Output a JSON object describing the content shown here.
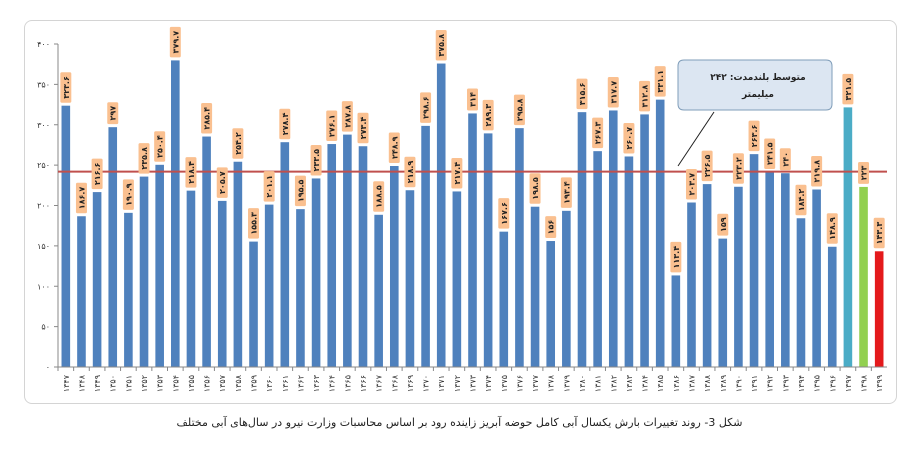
{
  "caption": "شکل 3- روند تغییرات بارش یکسال آبی کامل حوضه آبریز زاینده رود بر اساس محاسبات وزارت نیرو در سال‌های آبی مختلف",
  "colors": {
    "bar": "#4f81bd",
    "bar_1397": "#4bacc6",
    "bar_1398": "#92d050",
    "bar_1399": "#e41a1c",
    "mean_line": "#c0504d",
    "label_bg": "#fac090",
    "callout_bg": "#dce6f2",
    "callout_border": "#7f9db9"
  },
  "chart_data": {
    "type": "bar",
    "title": "",
    "xlabel": "",
    "ylabel": "",
    "ylim": [
      0,
      400
    ],
    "y_ticks": [
      "۰",
      "۵۰",
      "۱۰۰",
      "۱۵۰",
      "۲۰۰",
      "۲۵۰",
      "۳۰۰",
      "۳۵۰",
      "۴۰۰"
    ],
    "y_tick_values": [
      0,
      50,
      100,
      150,
      200,
      250,
      300,
      350,
      400
    ],
    "grid": false,
    "categories": [
      "۱۳۴۷",
      "۱۳۴۸",
      "۱۳۴۹",
      "۱۳۵۰",
      "۱۳۵۱",
      "۱۳۵۲",
      "۱۳۵۳",
      "۱۳۵۴",
      "۱۳۵۵",
      "۱۳۵۶",
      "۱۳۵۷",
      "۱۳۵۸",
      "۱۳۵۹",
      "۱۳۶۰",
      "۱۳۶۱",
      "۱۳۶۲",
      "۱۳۶۳",
      "۱۳۶۴",
      "۱۳۶۵",
      "۱۳۶۶",
      "۱۳۶۷",
      "۱۳۶۸",
      "۱۳۶۹",
      "۱۳۷۰",
      "۱۳۷۱",
      "۱۳۷۲",
      "۱۳۷۳",
      "۱۳۷۴",
      "۱۳۷۵",
      "۱۳۷۶",
      "۱۳۷۷",
      "۱۳۷۸",
      "۱۳۷۹",
      "۱۳۸۰",
      "۱۳۸۱",
      "۱۳۸۲",
      "۱۳۸۳",
      "۱۳۸۴",
      "۱۳۸۵",
      "۱۳۸۶",
      "۱۳۸۷",
      "۱۳۸۸",
      "۱۳۸۹",
      "۱۳۹۰",
      "۱۳۹۱",
      "۱۳۹۲",
      "۱۳۹۳",
      "۱۳۹۴",
      "۱۳۹۵",
      "۱۳۹۶",
      "۱۳۹۷",
      "۱۳۹۸",
      "۱۳۹۹"
    ],
    "values": [
      323.6,
      186.7,
      216.6,
      297,
      190.9,
      235.8,
      250.4,
      379.7,
      218.4,
      285.4,
      205.7,
      254.2,
      155.3,
      201.1,
      278.4,
      195.5,
      233.5,
      276.1,
      287.8,
      273.4,
      188.5,
      248.9,
      218.9,
      298.6,
      375.8,
      217.4,
      314,
      289.3,
      167.6,
      295.8,
      198.5,
      156,
      193.4,
      315.6,
      267.3,
      317.7,
      260.7,
      312.8,
      331.1,
      113.4,
      203.7,
      226.5,
      159,
      223.2,
      263.6,
      241.5,
      240,
      184.2,
      219.8,
      148.9,
      321.5,
      223,
      143.3
    ],
    "data_labels": [
      "۳۲۳.۶",
      "۱۸۶.۷",
      "۲۱۶.۶",
      "۲۹۷",
      "۱۹۰.۹",
      "۲۳۵.۸",
      "۲۵۰.۴",
      "۳۷۹.۷",
      "۲۱۸.۴",
      "۲۸۵.۴",
      "۲۰۵.۷",
      "۲۵۴.۲",
      "۱۵۵.۳",
      "۲۰۱.۱",
      "۲۷۸.۴",
      "۱۹۵.۵",
      "۲۳۳.۵",
      "۲۷۶.۱",
      "۲۸۷.۸",
      "۲۷۳.۴",
      "۱۸۸.۵",
      "۲۴۸.۹",
      "۲۱۸.۹",
      "۲۹۸.۶",
      "۳۷۵.۸",
      "۲۱۷.۴",
      "۳۱۴",
      "۲۸۹.۳",
      "۱۶۷.۶",
      "۲۹۵.۸",
      "۱۹۸.۵",
      "۱۵۶",
      "۱۹۳.۴",
      "۳۱۵.۶",
      "۲۶۷.۳",
      "۳۱۷.۷",
      "۲۶۰.۷",
      "۳۱۲.۸",
      "۳۳۱.۱",
      "۱۱۳.۴",
      "۲۰۳.۷",
      "۲۲۶.۵",
      "۱۵۹",
      "۲۲۳.۲",
      "۲۶۳.۶",
      "۲۴۱.۵",
      "۲۴۰",
      "۱۸۴.۲",
      "۲۱۹.۸",
      "۱۴۸.۹",
      "۳۲۱.۵",
      "۲۲۳",
      "۱۴۳.۳"
    ],
    "mean_line": {
      "value": 242,
      "label_line1": "متوسط بلندمدت: ۲۴۲",
      "label_line2": "میلیمتر"
    }
  }
}
